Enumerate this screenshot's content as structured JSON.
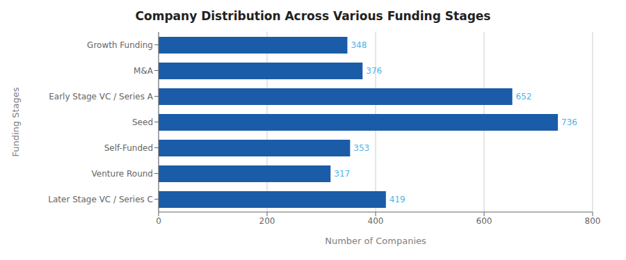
{
  "chart_data": {
    "type": "bar",
    "orientation": "horizontal",
    "title": "Company Distribution Across Various Funding Stages",
    "xlabel": "Number of Companies",
    "ylabel": "Funding Stages",
    "categories": [
      "Growth Funding",
      "M&A",
      "Early Stage VC / Series A",
      "Seed",
      "Self-Funded",
      "Venture Round",
      "Later Stage VC / Series C"
    ],
    "values": [
      348,
      376,
      652,
      736,
      353,
      317,
      419
    ],
    "color": "#1a5ca8",
    "xlim": [
      0,
      800
    ],
    "xticks": [
      0,
      200,
      400,
      600,
      800
    ],
    "grid": true,
    "data_labels": true
  }
}
